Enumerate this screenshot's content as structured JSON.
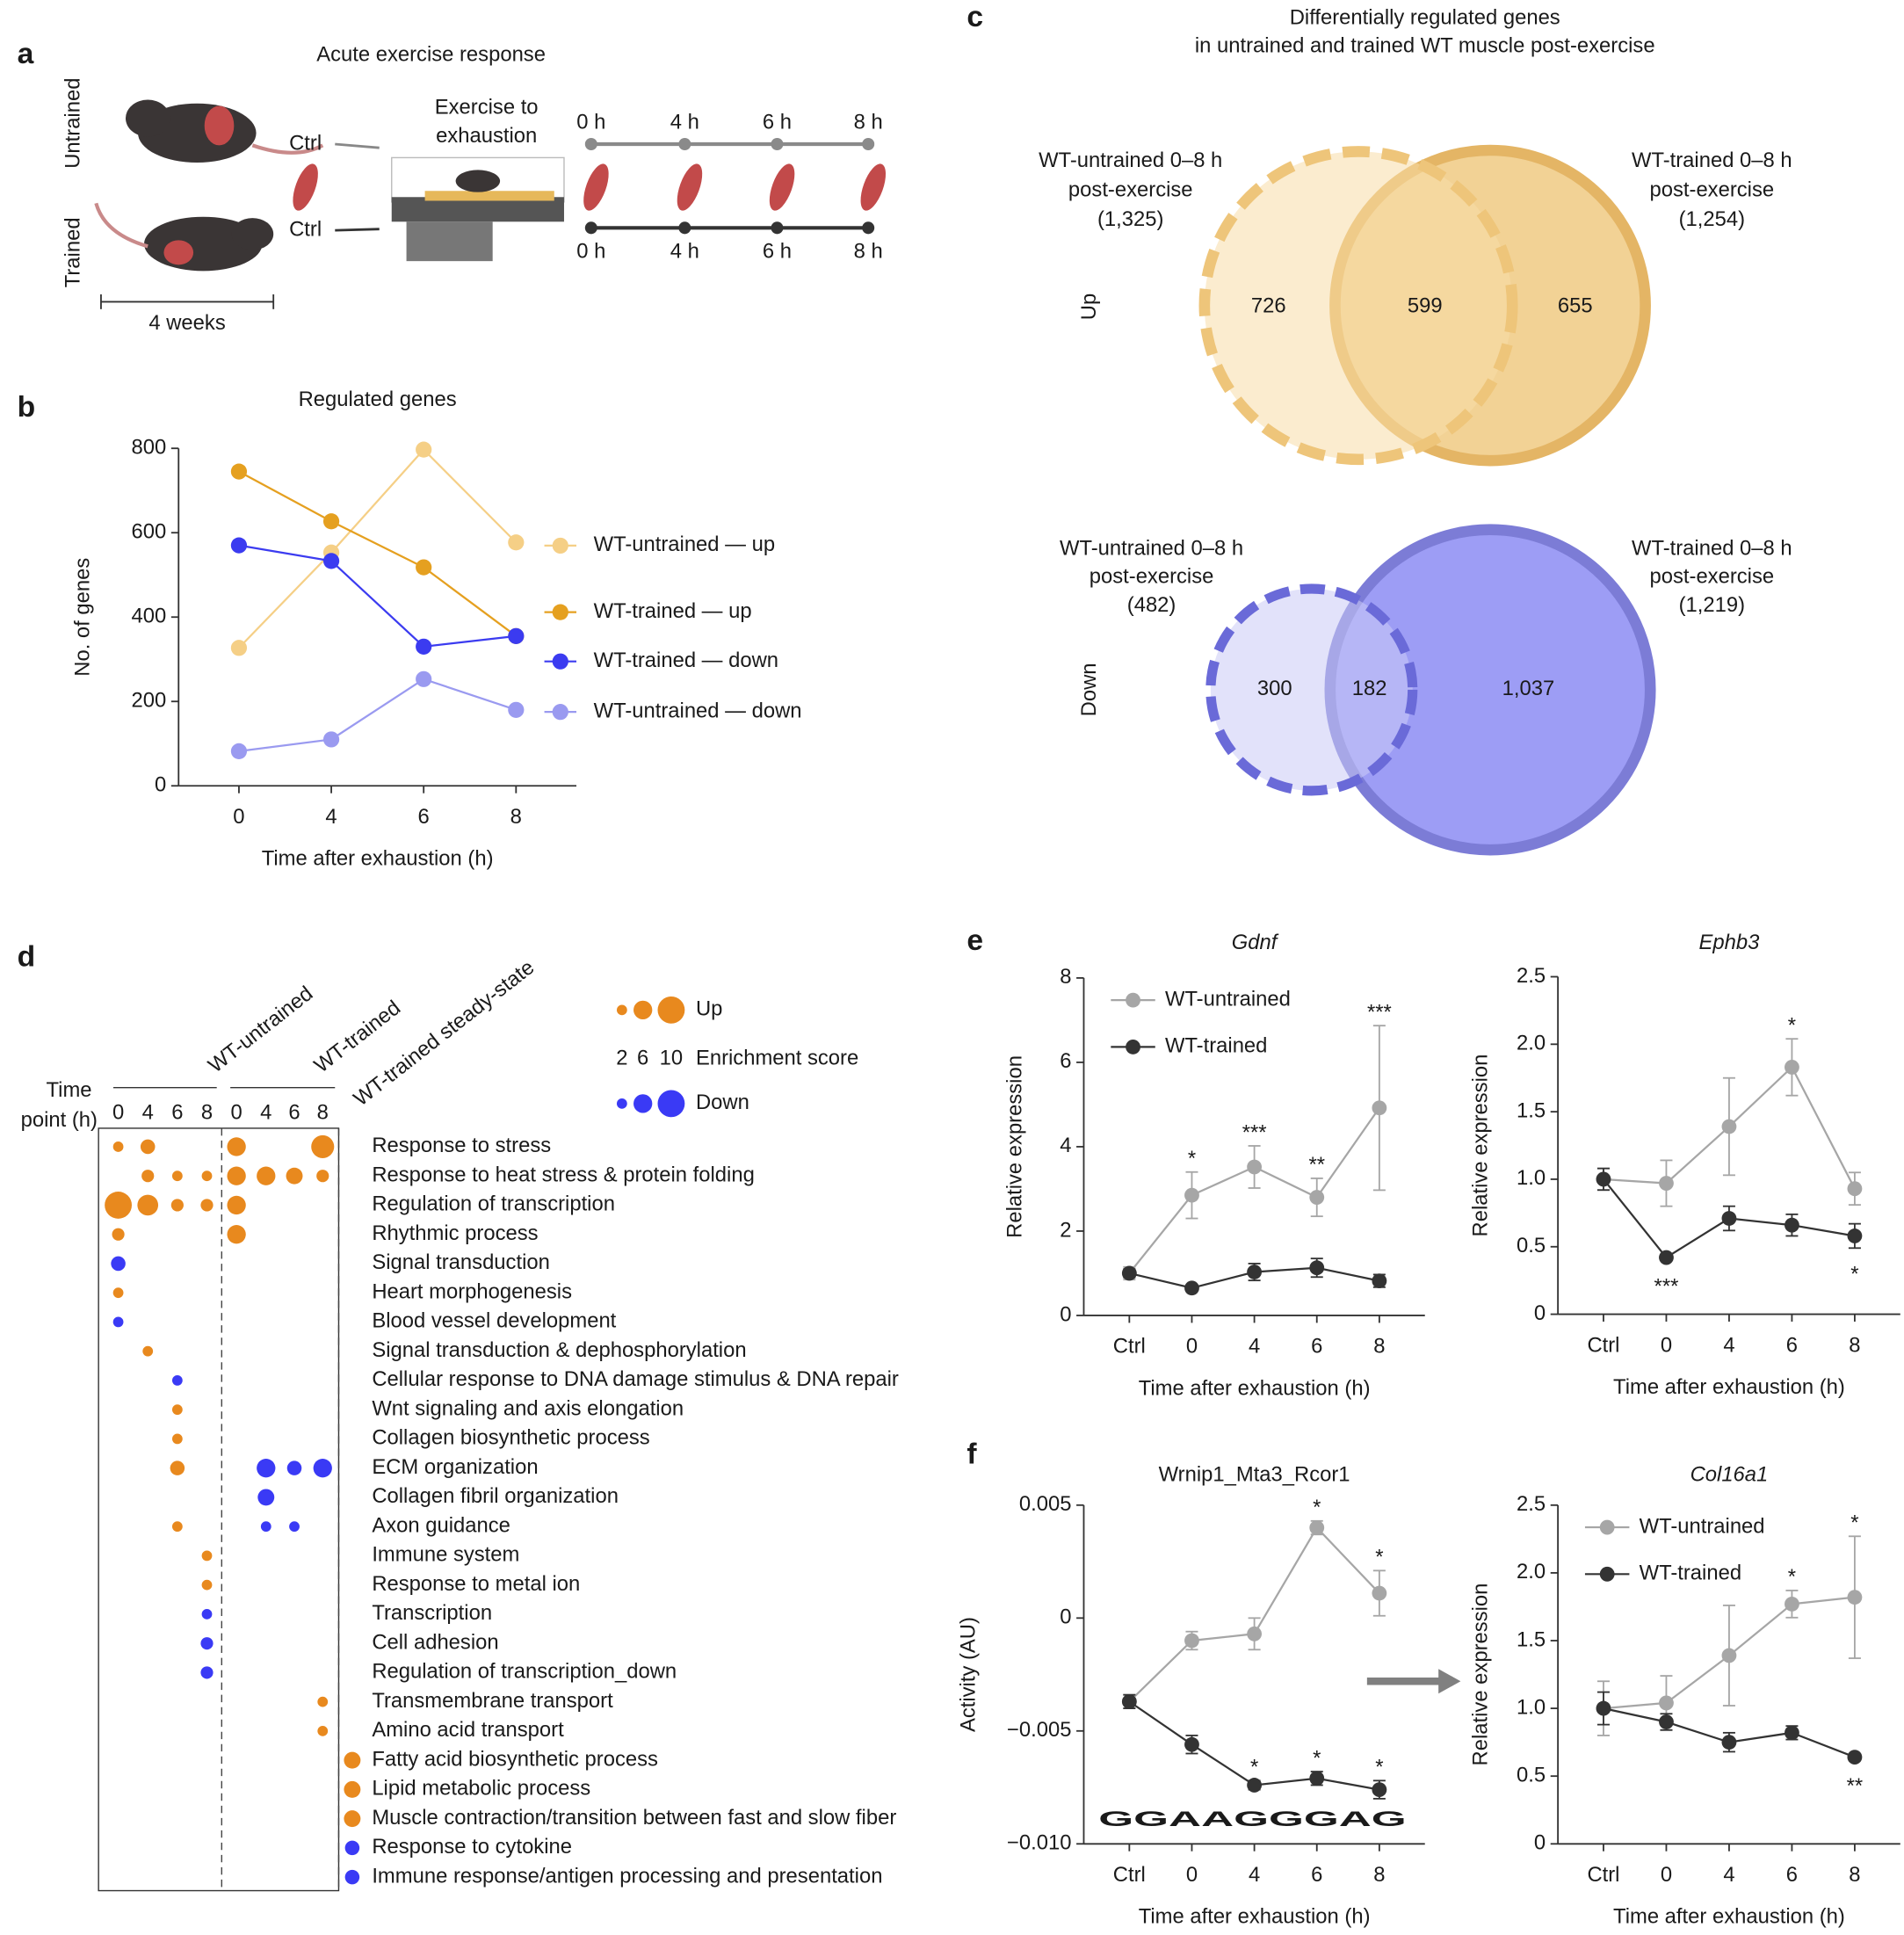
{
  "panel_labels": [
    "a",
    "b",
    "c",
    "d",
    "e",
    "f"
  ],
  "panel_a": {
    "title": "Acute exercise response",
    "untrained": "Untrained",
    "trained": "Trained",
    "duration": "4 weeks",
    "ctrl": [
      "Ctrl",
      "Ctrl"
    ],
    "exercise": [
      "Exercise to",
      "exhaustion"
    ],
    "times_top": [
      "0 h",
      "4 h",
      "6 h",
      "8 h"
    ],
    "times_bottom": [
      "0 h",
      "4 h",
      "6 h",
      "8 h"
    ]
  },
  "venn": {
    "title": [
      "Differentially regulated genes",
      "in untrained and trained WT muscle post-exercise"
    ],
    "up": {
      "row_label": "Up",
      "left_label": [
        "WT-untrained 0–8 h",
        "post-exercise",
        "(1,325)"
      ],
      "right_label": [
        "WT-trained 0–8 h",
        "post-exercise",
        "(1,254)"
      ],
      "left_only": "726",
      "overlap": "599",
      "right_only": "655"
    },
    "down": {
      "row_label": "Down",
      "left_label": [
        "WT-untrained 0–8 h",
        "post-exercise",
        "(482)"
      ],
      "right_label": [
        "WT-trained 0–8 h",
        "post-exercise",
        "(1,219)"
      ],
      "left_only": "300",
      "overlap": "182",
      "right_only": "1,037"
    }
  },
  "dotplot": {
    "groups": [
      "WT-untrained",
      "WT-trained",
      "WT-trained steady-state"
    ],
    "time_title": [
      "Time",
      "point (h)"
    ],
    "time_labels": [
      "0",
      "4",
      "6",
      "8",
      "0",
      "4",
      "6",
      "8"
    ],
    "legend": {
      "up": "Up",
      "down": "Down",
      "score_title": "Enrichment score",
      "scores": [
        2,
        6,
        10
      ]
    },
    "up_color": "#e8891e",
    "down_color": "#3a3af5",
    "rows": [
      {
        "term": "Response to stress",
        "up": [
          2,
          4,
          null,
          null,
          6,
          null,
          null,
          8,
          null
        ],
        "down": [
          null,
          null,
          null,
          null,
          null,
          null,
          null,
          null,
          null
        ]
      },
      {
        "term": "Response to heat stress & protein folding",
        "up": [
          null,
          3,
          2,
          2,
          6,
          6,
          5,
          3,
          null
        ],
        "down": [
          null,
          null,
          null,
          null,
          null,
          null,
          null,
          null,
          null
        ]
      },
      {
        "term": "Regulation of transcription",
        "up": [
          10,
          7,
          3,
          3,
          6,
          null,
          null,
          null,
          null
        ],
        "down": [
          null,
          null,
          null,
          null,
          null,
          null,
          null,
          null,
          null
        ]
      },
      {
        "term": "Rhythmic process",
        "up": [
          3,
          null,
          null,
          null,
          6,
          null,
          null,
          null,
          null
        ],
        "down": [
          null,
          null,
          null,
          null,
          null,
          null,
          null,
          null,
          null
        ]
      },
      {
        "term": "Signal transduction",
        "up": [
          null,
          null,
          null,
          null,
          null,
          null,
          null,
          null,
          null
        ],
        "down": [
          4,
          null,
          null,
          null,
          null,
          null,
          null,
          null,
          null
        ]
      },
      {
        "term": "Heart morphogenesis",
        "up": [
          2,
          null,
          null,
          null,
          null,
          null,
          null,
          null,
          null
        ],
        "down": [
          null,
          null,
          null,
          null,
          null,
          null,
          null,
          null,
          null
        ]
      },
      {
        "term": "Blood vessel development",
        "up": [
          null,
          null,
          null,
          null,
          null,
          null,
          null,
          null,
          null
        ],
        "down": [
          2,
          null,
          null,
          null,
          null,
          null,
          null,
          null,
          null
        ]
      },
      {
        "term": "Signal transduction & dephosphorylation",
        "up": [
          null,
          2,
          null,
          null,
          null,
          null,
          null,
          null,
          null
        ],
        "down": [
          null,
          null,
          null,
          null,
          null,
          null,
          null,
          null,
          null
        ]
      },
      {
        "term": "Cellular response to DNA damage stimulus & DNA repair",
        "up": [
          null,
          null,
          null,
          null,
          null,
          null,
          null,
          null,
          null
        ],
        "down": [
          null,
          null,
          2,
          null,
          null,
          null,
          null,
          null,
          null
        ]
      },
      {
        "term": "Wnt signaling and axis elongation",
        "up": [
          null,
          null,
          2,
          null,
          null,
          null,
          null,
          null,
          null
        ],
        "down": [
          null,
          null,
          null,
          null,
          null,
          null,
          null,
          null,
          null
        ]
      },
      {
        "term": "Collagen biosynthetic process",
        "up": [
          null,
          null,
          2,
          null,
          null,
          null,
          null,
          null,
          null
        ],
        "down": [
          null,
          null,
          null,
          null,
          null,
          null,
          null,
          null,
          null
        ]
      },
      {
        "term": "ECM organization",
        "up": [
          null,
          null,
          4,
          null,
          null,
          null,
          null,
          null,
          null
        ],
        "down": [
          null,
          null,
          null,
          null,
          null,
          6,
          4,
          6,
          null
        ]
      },
      {
        "term": "Collagen fibril organization",
        "up": [
          null,
          null,
          null,
          null,
          null,
          null,
          null,
          null,
          null
        ],
        "down": [
          null,
          null,
          null,
          null,
          null,
          5,
          null,
          null,
          null
        ]
      },
      {
        "term": "Axon guidance",
        "up": [
          null,
          null,
          2,
          null,
          null,
          null,
          null,
          null,
          null
        ],
        "down": [
          null,
          null,
          null,
          null,
          null,
          2,
          2,
          null,
          null
        ]
      },
      {
        "term": "Immune system",
        "up": [
          null,
          null,
          null,
          2,
          null,
          null,
          null,
          null,
          null
        ],
        "down": [
          null,
          null,
          null,
          null,
          null,
          null,
          null,
          null,
          null
        ]
      },
      {
        "term": "Response to metal ion",
        "up": [
          null,
          null,
          null,
          2,
          null,
          null,
          null,
          null,
          null
        ],
        "down": [
          null,
          null,
          null,
          null,
          null,
          null,
          null,
          null,
          null
        ]
      },
      {
        "term": "Transcription",
        "up": [
          null,
          null,
          null,
          null,
          null,
          null,
          null,
          null,
          null
        ],
        "down": [
          null,
          null,
          null,
          2,
          null,
          null,
          null,
          null,
          null
        ]
      },
      {
        "term": "Cell adhesion",
        "up": [
          null,
          null,
          null,
          null,
          null,
          null,
          null,
          null,
          null
        ],
        "down": [
          null,
          null,
          null,
          3,
          null,
          null,
          null,
          null,
          null
        ]
      },
      {
        "term": "Regulation of transcription_down",
        "up": [
          null,
          null,
          null,
          null,
          null,
          null,
          null,
          null,
          null
        ],
        "down": [
          null,
          null,
          null,
          3,
          null,
          null,
          null,
          null,
          null
        ]
      },
      {
        "term": "Transmembrane transport",
        "up": [
          null,
          null,
          null,
          null,
          null,
          null,
          null,
          2,
          null
        ],
        "down": [
          null,
          null,
          null,
          null,
          null,
          null,
          null,
          null,
          null
        ]
      },
      {
        "term": "Amino acid transport",
        "up": [
          null,
          null,
          null,
          null,
          null,
          null,
          null,
          2,
          null
        ],
        "down": [
          null,
          null,
          null,
          null,
          null,
          null,
          null,
          null,
          null
        ]
      },
      {
        "term": "Fatty acid biosynthetic process",
        "up": [
          null,
          null,
          null,
          null,
          null,
          null,
          null,
          null,
          5
        ],
        "down": [
          null,
          null,
          null,
          null,
          null,
          null,
          null,
          null,
          null
        ]
      },
      {
        "term": "Lipid metabolic process",
        "up": [
          null,
          null,
          null,
          null,
          null,
          null,
          null,
          null,
          5
        ],
        "down": [
          null,
          null,
          null,
          null,
          null,
          null,
          null,
          null,
          null
        ]
      },
      {
        "term": "Muscle contraction/transition between fast and slow fiber",
        "up": [
          null,
          null,
          null,
          null,
          null,
          null,
          null,
          null,
          5
        ],
        "down": [
          null,
          null,
          null,
          null,
          null,
          null,
          null,
          null,
          null
        ]
      },
      {
        "term": "Response to cytokine",
        "up": [
          null,
          null,
          null,
          null,
          null,
          null,
          null,
          null,
          null
        ],
        "down": [
          null,
          null,
          null,
          null,
          null,
          null,
          null,
          null,
          4
        ]
      },
      {
        "term": "Immune response/antigen processing and presentation",
        "up": [
          null,
          null,
          null,
          null,
          null,
          null,
          null,
          null,
          null
        ],
        "down": [
          null,
          null,
          null,
          null,
          null,
          null,
          null,
          null,
          4
        ]
      }
    ]
  },
  "motif_logo": "GGAAGGGAG",
  "chart_data": [
    {
      "type": "line",
      "title": "Regulated genes",
      "x_label": "Time after exhaustion (h)",
      "y_label": "No. of genes",
      "categories": [
        "0",
        "4",
        "6",
        "8"
      ],
      "ylim": [
        0,
        800
      ],
      "yticks": [
        0,
        200,
        400,
        600,
        800
      ],
      "legend": "right",
      "series": [
        {
          "name": "WT-untrained — up",
          "color": "#f5cf86",
          "values": [
            327,
            553,
            797,
            577
          ]
        },
        {
          "name": "WT-trained — up",
          "color": "#e5a020",
          "values": [
            745,
            627,
            518,
            355
          ]
        },
        {
          "name": "WT-trained — down",
          "color": "#3b3bf0",
          "values": [
            570,
            533,
            330,
            355
          ]
        },
        {
          "name": "WT-untrained — down",
          "color": "#9a9af0",
          "values": [
            82,
            110,
            253,
            180
          ]
        }
      ]
    },
    {
      "type": "line",
      "title": "Gdnf",
      "title_style": "italic",
      "x_label": "Time after exhaustion (h)",
      "y_label": "Relative expression",
      "categories": [
        "Ctrl",
        "0",
        "4",
        "6",
        "8"
      ],
      "ylim": [
        0,
        8
      ],
      "yticks": [
        0,
        2,
        4,
        6,
        8
      ],
      "legend": "upper left",
      "series": [
        {
          "name": "WT-untrained",
          "color": "#a6a6a6",
          "values": [
            1.0,
            2.85,
            3.52,
            2.8,
            4.92
          ],
          "errors": [
            0.15,
            0.55,
            0.5,
            0.45,
            1.95
          ],
          "stars": [
            null,
            "*",
            "***",
            "**",
            "***"
          ]
        },
        {
          "name": "WT-trained",
          "color": "#333333",
          "values": [
            1.0,
            0.65,
            1.03,
            1.13,
            0.82
          ],
          "errors": [
            0.1,
            0.08,
            0.2,
            0.22,
            0.15
          ]
        }
      ]
    },
    {
      "type": "line",
      "title": "Ephb3",
      "title_style": "italic",
      "x_label": "Time after exhaustion (h)",
      "y_label": "Relative expression",
      "categories": [
        "Ctrl",
        "0",
        "4",
        "6",
        "8"
      ],
      "ylim": [
        0,
        2.5
      ],
      "yticks": [
        0,
        0.5,
        {
          "value": 1,
          "label": "1.0"
        },
        1.5,
        {
          "value": 2,
          "label": "2.0"
        },
        2.5
      ],
      "series": [
        {
          "name": "WT-untrained",
          "color": "#a6a6a6",
          "values": [
            1.0,
            0.97,
            1.39,
            1.83,
            0.93
          ],
          "errors": [
            0.08,
            0.17,
            0.36,
            0.21,
            0.12
          ],
          "stars": [
            null,
            null,
            null,
            "*",
            null
          ]
        },
        {
          "name": "WT-trained",
          "color": "#333333",
          "values": [
            1.0,
            0.42,
            0.71,
            0.66,
            0.58
          ],
          "errors": [
            0.08,
            0.02,
            0.09,
            0.08,
            0.09
          ],
          "stars": [
            null,
            "***",
            null,
            null,
            "*"
          ],
          "stars_below": true
        }
      ]
    },
    {
      "type": "line",
      "title": "Wrnip1_Mta3_Rcor1",
      "x_label": "Time after exhaustion (h)",
      "y_label": "Activity (AU)",
      "categories": [
        "Ctrl",
        "0",
        "4",
        "6",
        "8"
      ],
      "ylim": [
        -0.01,
        0.005
      ],
      "yticks": [
        {
          "value": -0.01,
          "label": "−0.010"
        },
        {
          "value": -0.005,
          "label": "−0.005"
        },
        0,
        0.005
      ],
      "series": [
        {
          "name": "WT-untrained",
          "color": "#a6a6a6",
          "values": [
            -0.0037,
            -0.001,
            -0.0007,
            0.004,
            0.0011
          ],
          "errors": [
            0.0003,
            0.0004,
            0.0007,
            0.0003,
            0.001
          ],
          "stars": [
            null,
            null,
            null,
            "*",
            "*"
          ]
        },
        {
          "name": "WT-trained",
          "color": "#333333",
          "values": [
            -0.0037,
            -0.0056,
            -0.0074,
            -0.0071,
            -0.0076
          ],
          "errors": [
            0.0003,
            0.0004,
            0.0002,
            0.0003,
            0.0004
          ],
          "stars": [
            null,
            null,
            "*",
            "*",
            "*"
          ]
        }
      ]
    },
    {
      "type": "line",
      "title": "Col16a1",
      "title_style": "italic",
      "x_label": "Time after exhaustion (h)",
      "y_label": "Relative expression",
      "categories": [
        "Ctrl",
        "0",
        "4",
        "6",
        "8"
      ],
      "ylim": [
        0,
        2.5
      ],
      "yticks": [
        0,
        0.5,
        {
          "value": 1,
          "label": "1.0"
        },
        1.5,
        {
          "value": 2,
          "label": "2.0"
        },
        2.5
      ],
      "legend": "upper left",
      "series": [
        {
          "name": "WT-untrained",
          "color": "#a6a6a6",
          "values": [
            1.0,
            1.04,
            1.39,
            1.77,
            1.82
          ],
          "errors": [
            0.2,
            0.2,
            0.37,
            0.1,
            0.45
          ],
          "stars": [
            null,
            null,
            null,
            "*",
            "*"
          ]
        },
        {
          "name": "WT-trained",
          "color": "#333333",
          "values": [
            1.0,
            0.9,
            0.75,
            0.82,
            0.64
          ],
          "errors": [
            0.12,
            0.06,
            0.07,
            0.05,
            0.02
          ],
          "stars": [
            null,
            null,
            null,
            null,
            "**"
          ],
          "stars_below": true
        }
      ]
    }
  ]
}
